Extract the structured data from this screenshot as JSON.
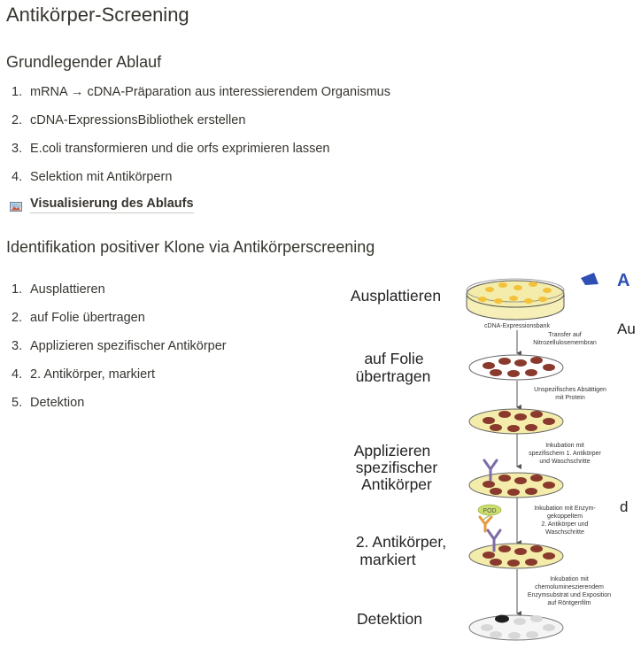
{
  "page": {
    "title": "Antikörper-Screening"
  },
  "section1": {
    "heading": "Grundlegender Ablauf",
    "items": [
      {
        "num": "1.",
        "text": "mRNA → cDNA-Präparation aus interessierendem Organismus"
      },
      {
        "num": "2.",
        "text": "cDNA-ExpressionsBibliothek erstellen"
      },
      {
        "num": "3.",
        "text": "E.coli transformieren und die orfs exprimieren lassen"
      },
      {
        "num": "4.",
        "text": "Selektion mit Antikörpern"
      }
    ],
    "link": {
      "icon": "image-icon",
      "label": "Visualisierung des Ablaufs"
    }
  },
  "section2": {
    "heading": "Identifikation positiver Klone via Antikörperscreening",
    "items": [
      {
        "num": "1.",
        "text": "Ausplattieren"
      },
      {
        "num": "2.",
        "text": "auf Folie übertragen"
      },
      {
        "num": "3.",
        "text": "Applizieren spezifischer Antikörper"
      },
      {
        "num": "4.",
        "text": "2. Antikörper, markiert"
      },
      {
        "num": "5.",
        "text": "Detektion"
      }
    ]
  },
  "diagram": {
    "steps": {
      "s1": "Ausplattieren",
      "s2a": "auf Folie",
      "s2b": "übertragen",
      "s3a": "Applizieren",
      "s3b": "spezifischer",
      "s3c": "Antikörper",
      "s4a": "2. Antikörper,",
      "s4b": "markiert",
      "s5": "Detektion"
    },
    "dish_label": "cDNA-Expressionsbank",
    "notes": {
      "n1a": "Transfer auf",
      "n1b": "Nitrozellulosemembran",
      "n2a": "Unspezifisches Absättigen",
      "n2b": "mit Protein",
      "n3a": "Inkubation mit",
      "n3b": "spezifischem 1. Antikörper",
      "n3c": "und Waschschritte",
      "n4a": "Inkubation mit Enzym-",
      "n4b": "gekoppeltem",
      "n4c": "2. Antikörper und",
      "n4d": "Waschschritte",
      "n5a": "Inkubation mit",
      "n5b": "chemolumineszierendem",
      "n5c": "Enzymsubstrat und Exposition",
      "n5d": "auf Röntgenfilm"
    },
    "pod_label": "POD",
    "edge_letters": {
      "top": "A",
      "mid": "Au",
      "low": "d"
    },
    "colors": {
      "dish_fill": "#f4ecaa",
      "colony_yellow": "#f3c23a",
      "colony_brown": "#8a3a2c",
      "antibody_purple": "#7d6ca8",
      "antibody_orange": "#e69a3e",
      "pod_green": "#c9df6a",
      "edge_blue": "#2f4fb5"
    }
  }
}
